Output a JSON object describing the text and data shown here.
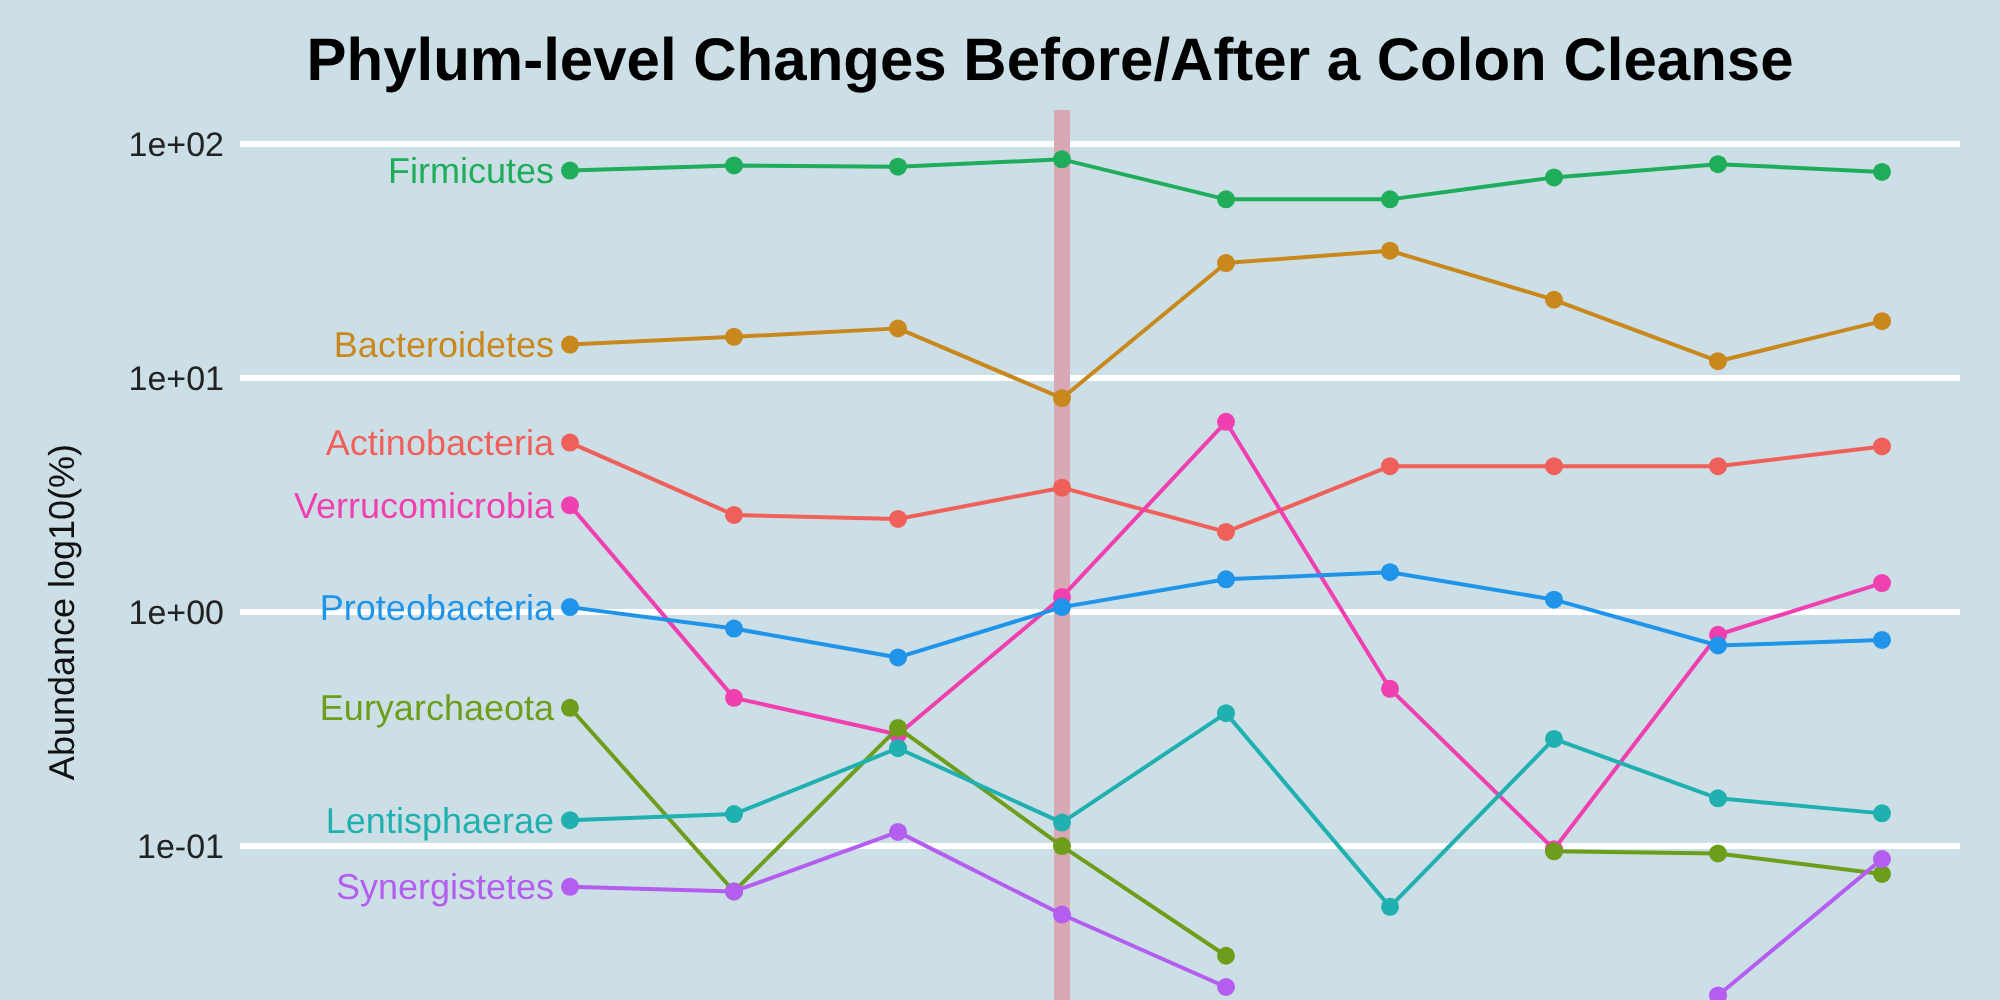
{
  "chart_data": {
    "type": "line",
    "title": "Phylum-level Changes Before/After a Colon Cleanse",
    "ylabel": "Abundance log10(%)",
    "categories": [
      null,
      null,
      null,
      null,
      null,
      null,
      null,
      null,
      null
    ],
    "tick_labels": "y",
    "log": true,
    "ylim": [
      0.022,
      100
    ],
    "yticks": [
      {
        "value": 0.1,
        "label": "1e-01"
      },
      {
        "value": 1,
        "label": "1e+00"
      },
      {
        "value": 10,
        "label": "1e+01"
      },
      {
        "value": 100,
        "label": "1e+02"
      }
    ],
    "grid": "y",
    "legend": "left",
    "marker": "circle",
    "line_style": "solid",
    "series": [
      {
        "name": "Firmicutes",
        "color": "#1fad5c",
        "values": [
          77,
          81,
          80,
          86,
          58,
          58,
          72,
          82,
          76
        ]
      },
      {
        "name": "Bacteroidetes",
        "color": "#c8881e",
        "values": [
          13.9,
          15.0,
          16.3,
          8.2,
          31,
          35,
          21.6,
          11.8,
          17.5
        ]
      },
      {
        "name": "Actinobacteria",
        "color": "#f0605a",
        "values": [
          5.3,
          2.6,
          2.5,
          3.4,
          2.2,
          4.2,
          4.2,
          4.2,
          5.1
        ]
      },
      {
        "name": "Verrucomicrobia",
        "color": "#f040b0",
        "values": [
          2.86,
          0.43,
          0.3,
          1.16,
          6.5,
          0.47,
          0.097,
          0.8,
          1.33
        ]
      },
      {
        "name": "Proteobacteria",
        "color": "#1f94e8",
        "values": [
          1.05,
          0.85,
          0.64,
          1.05,
          1.38,
          1.48,
          1.13,
          0.72,
          0.76
        ]
      },
      {
        "name": "Euryarchaeota",
        "color": "#6c9e1c",
        "values": [
          0.39,
          0.064,
          0.32,
          0.1,
          0.034,
          null,
          0.095,
          0.093,
          0.076
        ]
      },
      {
        "name": "Lentisphaerae",
        "color": "#20b0b0",
        "values": [
          0.129,
          0.137,
          0.262,
          0.126,
          0.37,
          0.055,
          0.287,
          0.16,
          0.138
        ]
      },
      {
        "name": "Synergistetes",
        "color": "#b45ef0",
        "values": [
          0.067,
          0.064,
          0.115,
          0.051,
          0.025,
          null,
          null,
          0.023,
          0.088
        ]
      }
    ]
  }
}
